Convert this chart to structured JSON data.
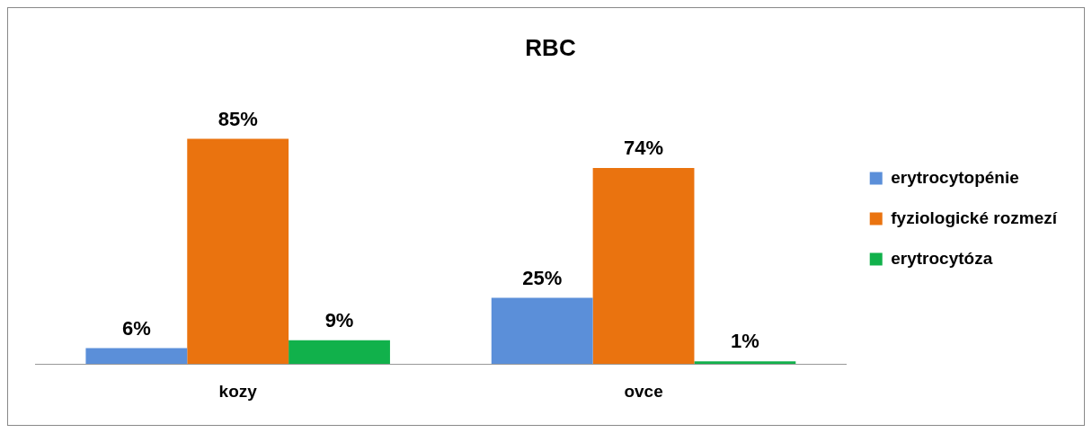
{
  "chart_data": {
    "type": "bar",
    "title": "RBC",
    "categories": [
      "kozy",
      "ovce"
    ],
    "series": [
      {
        "name": "erytrocytopénie",
        "color": "#5b8fd9",
        "values": [
          6,
          25
        ],
        "value_labels": [
          "6%",
          "25%"
        ]
      },
      {
        "name": "fyziologické rozmezí",
        "color": "#ea730f",
        "values": [
          85,
          74
        ],
        "value_labels": [
          "85%",
          "74%"
        ]
      },
      {
        "name": "erytrocytóza",
        "color": "#11b14b",
        "values": [
          9,
          1
        ],
        "value_labels": [
          "9%",
          "1%"
        ]
      }
    ],
    "legend": "right",
    "grid": false
  }
}
